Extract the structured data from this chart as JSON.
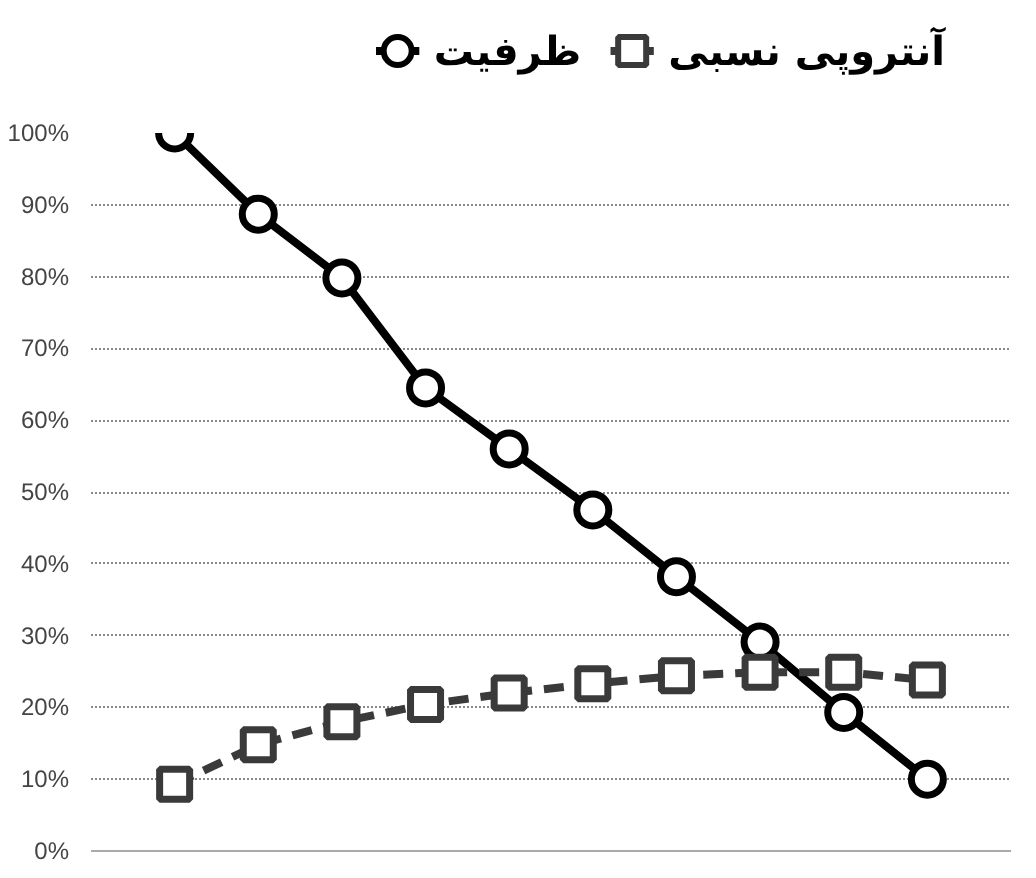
{
  "chart_data": {
    "type": "line",
    "categories": [
      null,
      null,
      null,
      null,
      null,
      null,
      null,
      null,
      null,
      null
    ],
    "series": [
      {
        "name": "ظرفیت",
        "color": "#000000",
        "marker": "circle",
        "line_style": "solid",
        "values": [
          100,
          88.7,
          79.8,
          64.5,
          56,
          47.5,
          38.2,
          29.1,
          19.3,
          10
        ]
      },
      {
        "name": "آنتروپی نسبی",
        "color": "#3a3a3a",
        "marker": "square",
        "line_style": "dashed",
        "values": [
          9.3,
          14.8,
          18,
          20.4,
          22,
          23.3,
          24.4,
          24.9,
          24.9,
          23.8
        ]
      }
    ],
    "ylim": [
      0,
      100
    ],
    "yticks": [
      {
        "value": 0,
        "label": "0%"
      },
      {
        "value": 10,
        "label": "10%"
      },
      {
        "value": 20,
        "label": "20%"
      },
      {
        "value": 30,
        "label": "30%"
      },
      {
        "value": 40,
        "label": "40%"
      },
      {
        "value": 50,
        "label": "50%"
      },
      {
        "value": 60,
        "label": "60%"
      },
      {
        "value": 70,
        "label": "70%"
      },
      {
        "value": 80,
        "label": "80%"
      },
      {
        "value": 90,
        "label": "90%"
      },
      {
        "value": 100,
        "label": "100%"
      }
    ],
    "grid": "y",
    "legend": "top",
    "tick_labels": "y"
  }
}
